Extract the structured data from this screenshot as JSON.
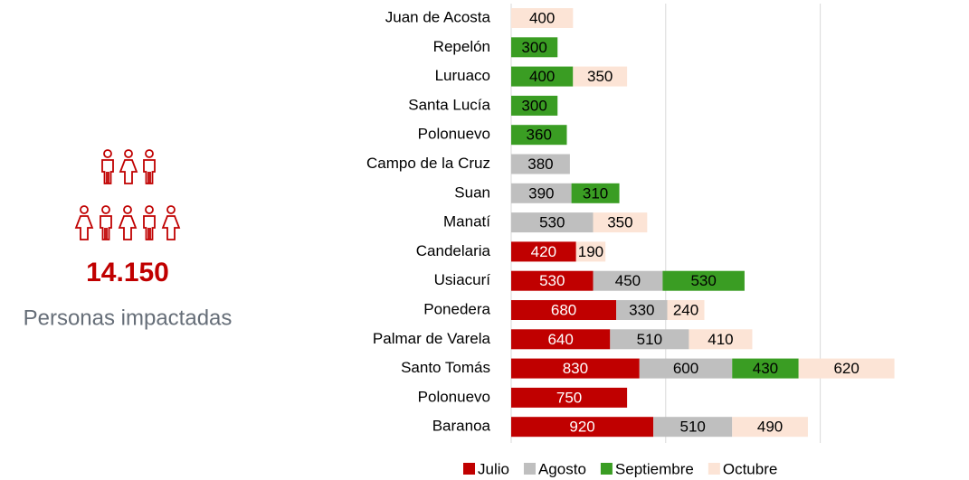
{
  "kpi": {
    "value": "14.150",
    "label": "Personas impactadas"
  },
  "chart_data": {
    "type": "stacked-barh",
    "categories": [
      "Juan de Acosta",
      "Repelón",
      "Luruaco",
      "Santa Lucía",
      "Polonuevo",
      "Campo de la Cruz",
      "Suan",
      "Manatí",
      "Candelaria",
      "Usiacurí",
      "Ponedera",
      "Palmar de Varela",
      "Santo Tomás",
      "Polonuevo",
      "Baranoa"
    ],
    "series": [
      {
        "name": "Julio",
        "color": "#c00000",
        "label_color": "#ffffff",
        "values": [
          null,
          null,
          null,
          null,
          null,
          null,
          null,
          null,
          420,
          530,
          680,
          640,
          830,
          750,
          920
        ]
      },
      {
        "name": "Agosto",
        "color": "#bfbfbf",
        "label_color": "#000000",
        "values": [
          null,
          null,
          null,
          null,
          null,
          380,
          390,
          530,
          null,
          450,
          330,
          510,
          600,
          null,
          510
        ]
      },
      {
        "name": "Septiembre",
        "color": "#3a9d23",
        "label_color": "#000000",
        "values": [
          null,
          300,
          400,
          300,
          360,
          null,
          310,
          null,
          null,
          530,
          null,
          null,
          430,
          null,
          null
        ]
      },
      {
        "name": "Octubre",
        "color": "#fce4d6",
        "label_color": "#000000",
        "values": [
          400,
          null,
          350,
          null,
          null,
          null,
          null,
          350,
          190,
          null,
          240,
          410,
          620,
          null,
          490
        ]
      }
    ],
    "xlim": [
      0,
      2500
    ],
    "xticks": [
      0,
      1000,
      2000
    ],
    "grid": true,
    "legend": "bottom"
  }
}
